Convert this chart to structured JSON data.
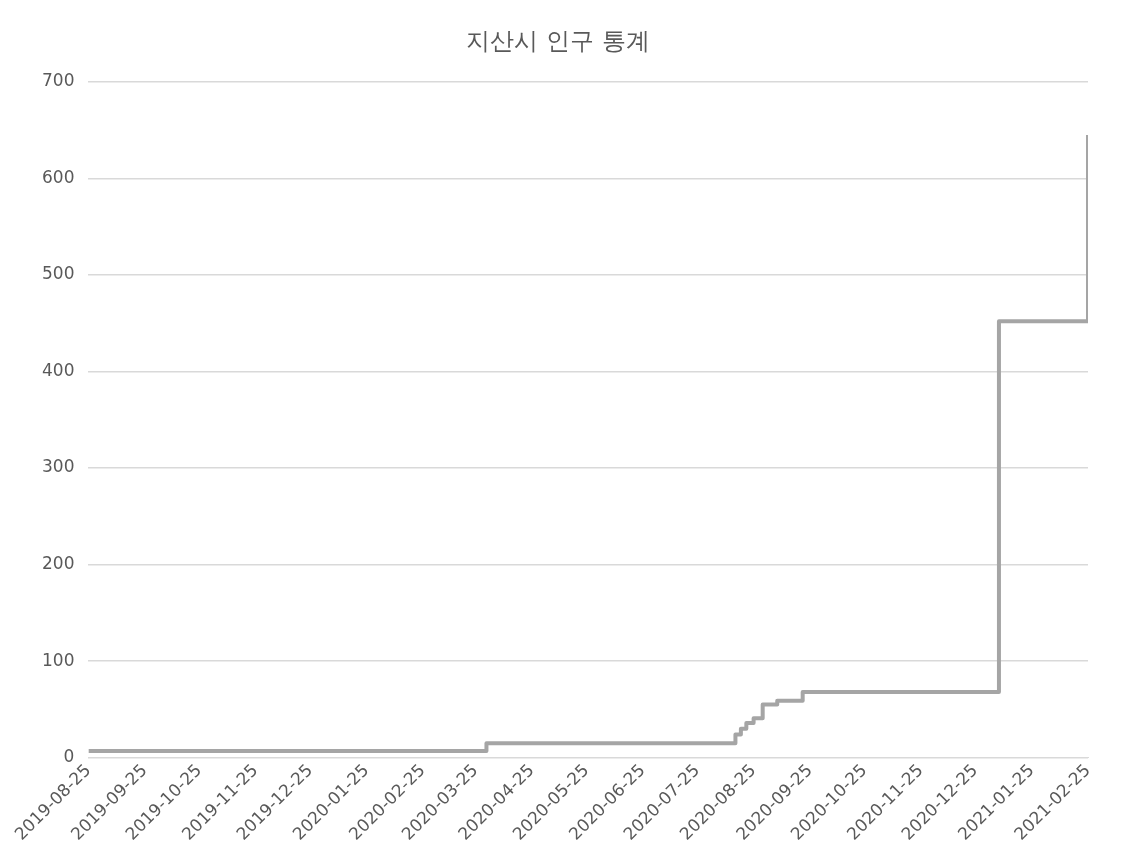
{
  "chart_data": {
    "type": "step",
    "title": "지산시 인구 통계",
    "series": [
      {
        "color": "#a5a5a5",
        "x": [
          "2019-08-25",
          "2020-03-31",
          "2020-08-15",
          "2020-08-18",
          "2020-08-21",
          "2020-08-25",
          "2020-08-30",
          "2020-09-07",
          "2020-09-21",
          "2021-01-07",
          "2021-02-25"
        ],
        "values": [
          7,
          15,
          24,
          30,
          36,
          41,
          55,
          59,
          68,
          452,
          645
        ]
      }
    ],
    "xlim": [
      "2019-08-25",
      "2021-02-25"
    ],
    "xticks": [
      "2019-08-25",
      "2019-09-25",
      "2019-10-25",
      "2019-11-25",
      "2019-12-25",
      "2020-01-25",
      "2020-02-25",
      "2020-03-25",
      "2020-04-25",
      "2020-05-25",
      "2020-06-25",
      "2020-07-25",
      "2020-08-25",
      "2020-09-25",
      "2020-10-25",
      "2020-11-25",
      "2020-12-25",
      "2021-01-25",
      "2021-02-25"
    ],
    "ylim": [
      0,
      700
    ],
    "yticks": [
      0,
      100,
      200,
      300,
      400,
      500,
      600,
      700
    ],
    "grid": "y",
    "legend": false,
    "marker": "none",
    "line_style": "solid"
  }
}
